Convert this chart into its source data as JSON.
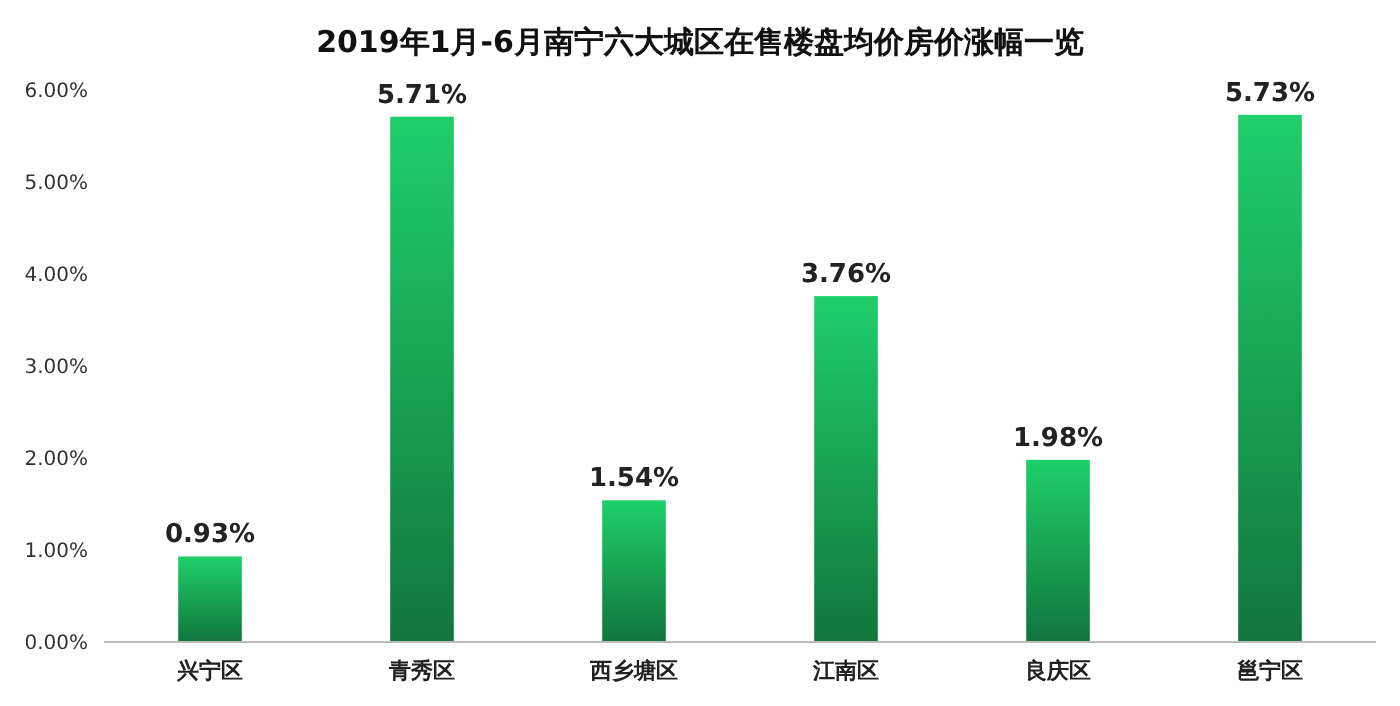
{
  "chart_data": {
    "type": "bar",
    "title": "2019年1月-6月南宁六大城区在售楼盘均价房价涨幅一览",
    "categories": [
      "兴宁区",
      "青秀区",
      "西乡塘区",
      "江南区",
      "良庆区",
      "邕宁区"
    ],
    "values": [
      0.93,
      5.71,
      1.54,
      3.76,
      1.98,
      5.73
    ],
    "value_labels": [
      "0.93%",
      "5.71%",
      "1.54%",
      "3.76%",
      "1.98%",
      "5.73%"
    ],
    "color": "#1fcf6a",
    "ylim": [
      0,
      6
    ],
    "yticks": [
      {
        "value": 0,
        "label": "0.00%"
      },
      {
        "value": 1,
        "label": "1.00%"
      },
      {
        "value": 2,
        "label": "2.00%"
      },
      {
        "value": 3,
        "label": "3.00%"
      },
      {
        "value": 4,
        "label": "4.00%"
      },
      {
        "value": 5,
        "label": "5.00%"
      },
      {
        "value": 6,
        "label": "6.00%"
      }
    ],
    "grid": false
  }
}
